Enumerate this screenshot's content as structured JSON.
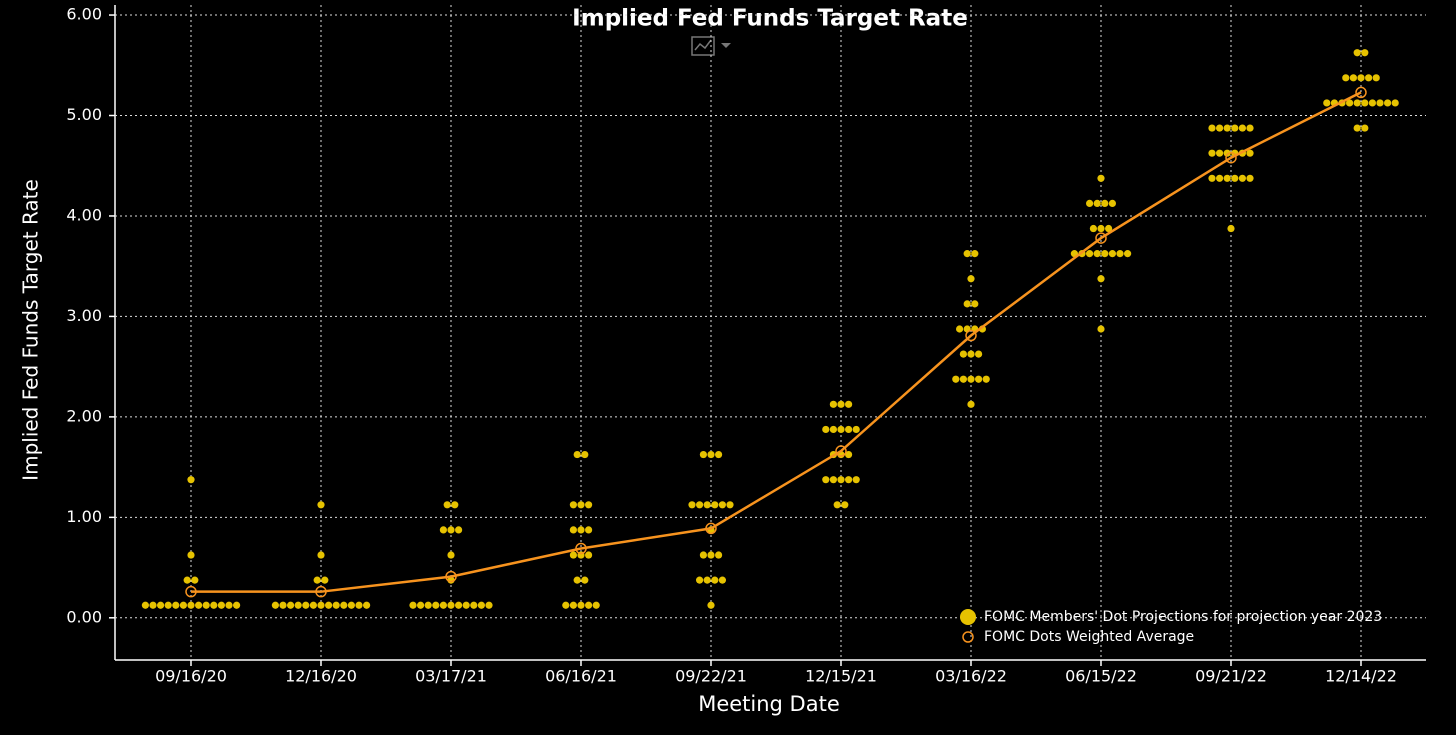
{
  "chart_data": {
    "type": "dot",
    "title": "Implied Fed Funds Target Rate",
    "x_label": "Meeting Date",
    "y_label": "Implied Fed Funds Target Rate",
    "categories": [
      "09/16/20",
      "12/16/20",
      "03/17/21",
      "06/16/21",
      "09/22/21",
      "12/15/21",
      "03/16/22",
      "06/15/22",
      "09/21/22",
      "12/14/22"
    ],
    "series": [
      {
        "name": "FOMC Members' Dot Projections for projection year 2023",
        "color": "#e6c200",
        "kind": "dots",
        "values": [
          [
            0.125,
            0.125,
            0.125,
            0.125,
            0.125,
            0.125,
            0.125,
            0.125,
            0.125,
            0.125,
            0.125,
            0.125,
            0.125,
            0.375,
            0.375,
            0.625,
            1.375
          ],
          [
            0.125,
            0.125,
            0.125,
            0.125,
            0.125,
            0.125,
            0.125,
            0.125,
            0.125,
            0.125,
            0.125,
            0.125,
            0.125,
            0.375,
            0.375,
            0.625,
            1.125
          ],
          [
            0.125,
            0.125,
            0.125,
            0.125,
            0.125,
            0.125,
            0.125,
            0.125,
            0.125,
            0.125,
            0.125,
            0.375,
            0.625,
            0.875,
            0.875,
            0.875,
            1.125,
            1.125
          ],
          [
            0.125,
            0.125,
            0.125,
            0.125,
            0.125,
            0.375,
            0.375,
            0.625,
            0.625,
            0.625,
            0.875,
            0.875,
            0.875,
            1.125,
            1.125,
            1.125,
            1.625,
            1.625
          ],
          [
            0.125,
            0.375,
            0.375,
            0.375,
            0.375,
            0.625,
            0.625,
            0.625,
            0.875,
            1.125,
            1.125,
            1.125,
            1.125,
            1.125,
            1.125,
            1.625,
            1.625,
            1.625
          ],
          [
            1.125,
            1.125,
            1.375,
            1.375,
            1.375,
            1.375,
            1.375,
            1.625,
            1.625,
            1.625,
            1.875,
            1.875,
            1.875,
            1.875,
            1.875,
            2.125,
            2.125,
            2.125
          ],
          [
            2.125,
            2.375,
            2.375,
            2.375,
            2.375,
            2.375,
            2.625,
            2.625,
            2.625,
            2.875,
            2.875,
            2.875,
            2.875,
            3.125,
            3.125,
            3.375,
            3.625,
            3.625
          ],
          [
            2.875,
            3.375,
            3.625,
            3.625,
            3.625,
            3.625,
            3.625,
            3.625,
            3.625,
            3.625,
            3.875,
            3.875,
            3.875,
            4.125,
            4.125,
            4.125,
            4.125,
            4.375
          ],
          [
            3.875,
            4.375,
            4.375,
            4.375,
            4.375,
            4.375,
            4.375,
            4.625,
            4.625,
            4.625,
            4.625,
            4.625,
            4.625,
            4.875,
            4.875,
            4.875,
            4.875,
            4.875,
            4.875
          ],
          [
            4.875,
            4.875,
            5.125,
            5.125,
            5.125,
            5.125,
            5.125,
            5.125,
            5.125,
            5.125,
            5.125,
            5.125,
            5.375,
            5.375,
            5.375,
            5.375,
            5.375,
            5.625,
            5.625
          ]
        ]
      },
      {
        "name": "FOMC Dots Weighted Average",
        "color": "#f7931e",
        "kind": "line",
        "values": [
          0.26,
          0.26,
          0.41,
          0.69,
          0.89,
          1.66,
          2.81,
          3.78,
          4.58,
          5.23
        ]
      }
    ],
    "ylim": [
      -0.42,
      6.1
    ],
    "yticks": [
      {
        "value": 0,
        "label": "0.00"
      },
      {
        "value": 1,
        "label": "1.00"
      },
      {
        "value": 2,
        "label": "2.00"
      },
      {
        "value": 3,
        "label": "3.00"
      },
      {
        "value": 4,
        "label": "4.00"
      },
      {
        "value": 5,
        "label": "5.00"
      },
      {
        "value": 6,
        "label": "6.00"
      }
    ],
    "grid": true,
    "legend": "lower right"
  }
}
